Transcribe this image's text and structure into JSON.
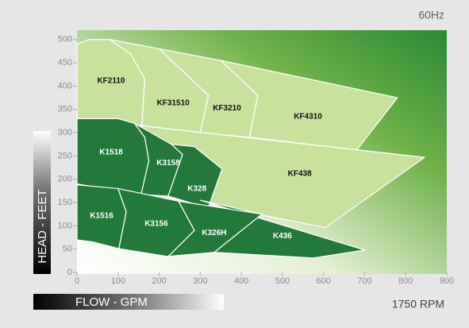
{
  "chart_data": {
    "type": "region",
    "title": "60Hz",
    "subtitle": "1750 RPM",
    "x_label": "FLOW - GPM",
    "y_label": "HEAD - FEET",
    "xlim": [
      0,
      900
    ],
    "ylim": [
      0,
      520
    ],
    "xticks": [
      0,
      100,
      200,
      300,
      400,
      500,
      600,
      700,
      800,
      900
    ],
    "yticks": [
      0,
      50,
      100,
      150,
      200,
      250,
      300,
      350,
      400,
      450,
      500
    ],
    "regions": [
      {
        "name": "KF2110",
        "color": "#c8e29e",
        "points": [
          [
            0,
            490
          ],
          [
            30,
            500
          ],
          [
            80,
            500
          ],
          [
            130,
            470
          ],
          [
            165,
            415
          ],
          [
            158,
            315
          ],
          [
            0,
            330
          ]
        ]
      },
      {
        "name": "KF31510",
        "color": "#c8e29e",
        "points": [
          [
            80,
            500
          ],
          [
            200,
            480
          ],
          [
            320,
            380
          ],
          [
            300,
            300
          ],
          [
            158,
            315
          ],
          [
            165,
            415
          ],
          [
            130,
            470
          ]
        ]
      },
      {
        "name": "KF3210",
        "color": "#c8e29e",
        "points": [
          [
            200,
            480
          ],
          [
            350,
            455
          ],
          [
            440,
            380
          ],
          [
            420,
            290
          ],
          [
            300,
            300
          ],
          [
            320,
            380
          ]
        ]
      },
      {
        "name": "KF4310",
        "color": "#c8e29e",
        "points": [
          [
            350,
            455
          ],
          [
            780,
            375
          ],
          [
            681,
            263
          ],
          [
            420,
            290
          ],
          [
            440,
            380
          ]
        ]
      },
      {
        "name": "KF438",
        "color": "#c8e29e",
        "points": [
          [
            0,
            330
          ],
          [
            846,
            247
          ],
          [
            604,
            96
          ],
          [
            300,
            150
          ],
          [
            0,
            190
          ]
        ]
      },
      {
        "name": "K1518",
        "color": "#23793a",
        "points": [
          [
            0,
            330
          ],
          [
            100,
            330
          ],
          [
            140,
            320
          ],
          [
            165,
            290
          ],
          [
            175,
            240
          ],
          [
            156,
            167
          ],
          [
            0,
            190
          ]
        ]
      },
      {
        "name": "K3158",
        "color": "#23793a",
        "points": [
          [
            140,
            320
          ],
          [
            180,
            300
          ],
          [
            230,
            275
          ],
          [
            257,
            253
          ],
          [
            222,
            164
          ],
          [
            156,
            167
          ],
          [
            175,
            240
          ],
          [
            165,
            290
          ]
        ]
      },
      {
        "name": "K328",
        "color": "#23793a",
        "points": [
          [
            230,
            275
          ],
          [
            286,
            270
          ],
          [
            353,
            222
          ],
          [
            319,
            138
          ],
          [
            222,
            164
          ],
          [
            257,
            253
          ]
        ]
      },
      {
        "name": "K436",
        "color": "#23793a",
        "points": [
          [
            300,
            155
          ],
          [
            700,
            48
          ],
          [
            575,
            31
          ],
          [
            334,
            43
          ],
          [
            450,
            125
          ]
        ]
      },
      {
        "name": "K1516",
        "color": "#23793a",
        "points": [
          [
            0,
            188
          ],
          [
            100,
            180
          ],
          [
            120,
            130
          ],
          [
            102,
            51
          ],
          [
            40,
            65
          ],
          [
            0,
            70
          ]
        ]
      },
      {
        "name": "K3156",
        "color": "#23793a",
        "points": [
          [
            100,
            180
          ],
          [
            247,
            153
          ],
          [
            286,
            90
          ],
          [
            222,
            34
          ],
          [
            102,
            51
          ],
          [
            120,
            130
          ]
        ]
      },
      {
        "name": "K326H",
        "color": "#23793a",
        "points": [
          [
            247,
            153
          ],
          [
            450,
            125
          ],
          [
            334,
            43
          ],
          [
            241,
            36
          ],
          [
            222,
            34
          ],
          [
            286,
            90
          ]
        ]
      }
    ]
  }
}
